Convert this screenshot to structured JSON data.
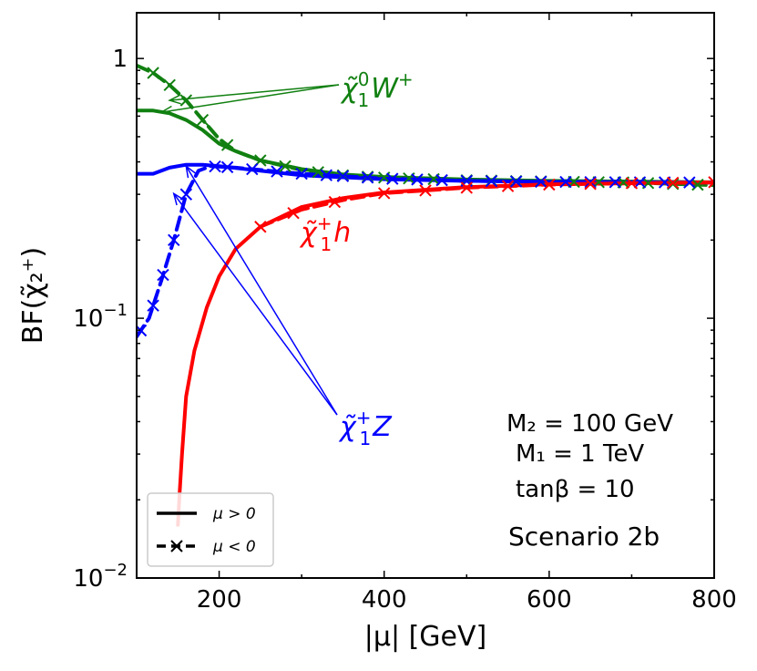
{
  "chart_data": {
    "type": "line",
    "title": "",
    "xlabel": "|μ| [GeV]",
    "ylabel": "BF(χ̃₂⁺)",
    "yscale": "log",
    "xlim": [
      100,
      800
    ],
    "ylim": [
      0.01,
      1.5
    ],
    "x_ticks": [
      {
        "value": 200,
        "label": "200"
      },
      {
        "value": 400,
        "label": "400"
      },
      {
        "value": 600,
        "label": "600"
      },
      {
        "value": 800,
        "label": "800"
      }
    ],
    "y_ticks": [
      {
        "value": 1,
        "base": "1",
        "exp": ""
      },
      {
        "value": 0.1,
        "base": "10",
        "exp": "−1"
      },
      {
        "value": 0.01,
        "base": "10",
        "exp": "−2"
      }
    ],
    "colors": {
      "W": "#118011",
      "Z": "#0000ff",
      "h": "#ff0000"
    },
    "series": [
      {
        "name": "χ̃₁⁰W⁺ (μ>0)",
        "channel": "W",
        "sign": "positive",
        "x": [
          100,
          120,
          140,
          160,
          180,
          200,
          220,
          250,
          300,
          350,
          400,
          500,
          600,
          700,
          800
        ],
        "y": [
          0.63,
          0.63,
          0.615,
          0.58,
          0.53,
          0.47,
          0.44,
          0.405,
          0.375,
          0.358,
          0.35,
          0.342,
          0.338,
          0.336,
          0.334
        ]
      },
      {
        "name": "χ̃₁⁰W⁺ (μ<0)",
        "channel": "W",
        "sign": "negative",
        "x": [
          100,
          120,
          140,
          160,
          180,
          200,
          220,
          250,
          300,
          350,
          400,
          500,
          600,
          700,
          800
        ],
        "y": [
          0.94,
          0.88,
          0.79,
          0.69,
          0.58,
          0.49,
          0.44,
          0.405,
          0.372,
          0.355,
          0.348,
          0.34,
          0.336,
          0.333,
          0.325
        ]
      },
      {
        "name": "χ̃₁⁺Z (μ>0)",
        "channel": "Z",
        "sign": "positive",
        "x": [
          100,
          120,
          140,
          160,
          180,
          200,
          250,
          300,
          400,
          500,
          600,
          700,
          800
        ],
        "y": [
          0.36,
          0.36,
          0.38,
          0.39,
          0.39,
          0.385,
          0.37,
          0.355,
          0.343,
          0.338,
          0.335,
          0.334,
          0.333
        ]
      },
      {
        "name": "χ̃₁⁺Z (μ<0)",
        "channel": "Z",
        "sign": "negative",
        "x": [
          100,
          115,
          130,
          145,
          160,
          175,
          190,
          220,
          260,
          300,
          400,
          500,
          600,
          700,
          800
        ],
        "y": [
          0.085,
          0.1,
          0.14,
          0.2,
          0.3,
          0.37,
          0.385,
          0.38,
          0.37,
          0.36,
          0.345,
          0.338,
          0.335,
          0.334,
          0.333
        ]
      },
      {
        "name": "χ̃₁⁺h (μ>0)",
        "channel": "h",
        "sign": "positive",
        "x": [
          150,
          152,
          155,
          160,
          170,
          185,
          200,
          220,
          250,
          300,
          350,
          400,
          500,
          600,
          700,
          800
        ],
        "y": [
          0.016,
          0.021,
          0.03,
          0.05,
          0.075,
          0.11,
          0.145,
          0.185,
          0.225,
          0.268,
          0.29,
          0.305,
          0.32,
          0.328,
          0.331,
          0.333
        ]
      },
      {
        "name": "χ̃₁⁺h (μ<0)",
        "channel": "h",
        "sign": "negative",
        "x": [
          250,
          300,
          350,
          400,
          500,
          600,
          700,
          800
        ],
        "y": [
          0.225,
          0.262,
          0.285,
          0.303,
          0.318,
          0.327,
          0.331,
          0.334
        ]
      }
    ],
    "markers": {
      "W": [
        120,
        140,
        160,
        180,
        210,
        250,
        280,
        320,
        350,
        380,
        400,
        430,
        460,
        500,
        530,
        560,
        590,
        630,
        660,
        690,
        720,
        750,
        780
      ],
      "Z": [
        105,
        120,
        132,
        145,
        160,
        195,
        210,
        240,
        270,
        300,
        330,
        350,
        380,
        410,
        440,
        470,
        500,
        530,
        560,
        590,
        620,
        650,
        680,
        710,
        740,
        770
      ],
      "h": [
        250,
        290,
        340,
        400,
        450,
        500,
        550,
        600,
        650,
        700,
        750,
        800
      ]
    },
    "annotations": [
      {
        "channel": "W",
        "base": "χ̃",
        "sup": "0",
        "sub": "1",
        "tail": "W",
        "tail_sup": "+"
      },
      {
        "channel": "h",
        "base": "χ̃",
        "sup": "+",
        "sub": "1",
        "tail": "h",
        "tail_sup": ""
      },
      {
        "channel": "Z",
        "base": "χ̃",
        "sup": "+",
        "sub": "1",
        "tail": "Z",
        "tail_sup": ""
      }
    ],
    "text_box": {
      "lines": [
        "M₂ = 100 GeV",
        "M₁ = 1 TeV",
        "tanβ = 10"
      ],
      "scenario": "Scenario 2b"
    },
    "legend": {
      "placement": "lower-left",
      "entries": [
        {
          "label": "μ > 0",
          "style": "solid"
        },
        {
          "label": "μ < 0",
          "style": "dashed-x"
        }
      ]
    }
  }
}
